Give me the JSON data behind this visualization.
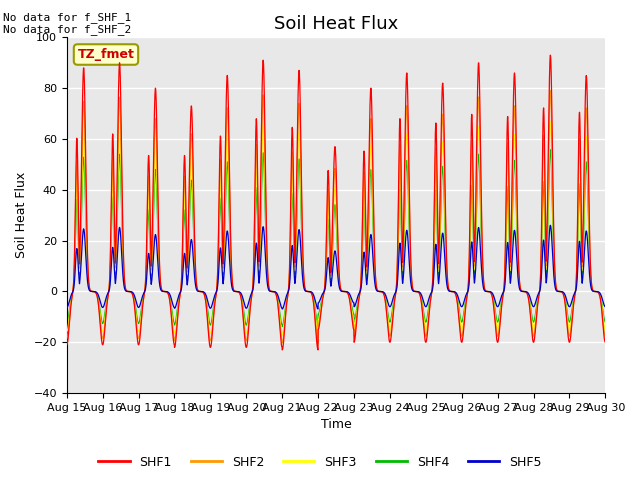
{
  "title": "Soil Heat Flux",
  "xlabel": "Time",
  "ylabel": "Soil Heat Flux",
  "ylim": [
    -40,
    100
  ],
  "xlim": [
    0,
    15
  ],
  "annotations": [
    "No data for f_SHF_1",
    "No data for f_SHF_2"
  ],
  "tz_label": "TZ_fmet",
  "x_tick_labels": [
    "Aug 15",
    "Aug 16",
    "Aug 17",
    "Aug 18",
    "Aug 19",
    "Aug 20",
    "Aug 21",
    "Aug 22",
    "Aug 23",
    "Aug 24",
    "Aug 25",
    "Aug 26",
    "Aug 27",
    "Aug 28",
    "Aug 29",
    "Aug 30"
  ],
  "legend_entries": [
    "SHF1",
    "SHF2",
    "SHF3",
    "SHF4",
    "SHF5"
  ],
  "legend_colors": [
    "#ff0000",
    "#ff9900",
    "#ffff00",
    "#00bb00",
    "#0000cc"
  ],
  "background_color": "#ffffff",
  "plot_bg_color": "#e8e8e8",
  "grid_color": "#ffffff",
  "title_fontsize": 13,
  "axis_label_fontsize": 9,
  "tick_fontsize": 8,
  "n_days": 15,
  "shf1_day_peaks": [
    88,
    90,
    80,
    73,
    85,
    91,
    87,
    57,
    80,
    86,
    82,
    90,
    86,
    93,
    85
  ],
  "shf1_morn_peaks": [
    71,
    73,
    63,
    63,
    72,
    80,
    76,
    56,
    65,
    80,
    78,
    82,
    81,
    85,
    83
  ],
  "shf1_troughs": [
    -21,
    -21,
    -21,
    -22,
    -22,
    -22,
    -23,
    -15,
    -20,
    -20,
    -20,
    -20,
    -20,
    -20,
    -20
  ],
  "shf2_scale": 0.85,
  "shf3_scale": 0.72,
  "shf4_scale": 0.6,
  "shf5_peak_scale": 0.28,
  "shf5_trough_scale": 0.3,
  "shf2_trough_scale": 0.88,
  "shf3_trough_scale": 0.75,
  "shf4_trough_scale": 0.6
}
